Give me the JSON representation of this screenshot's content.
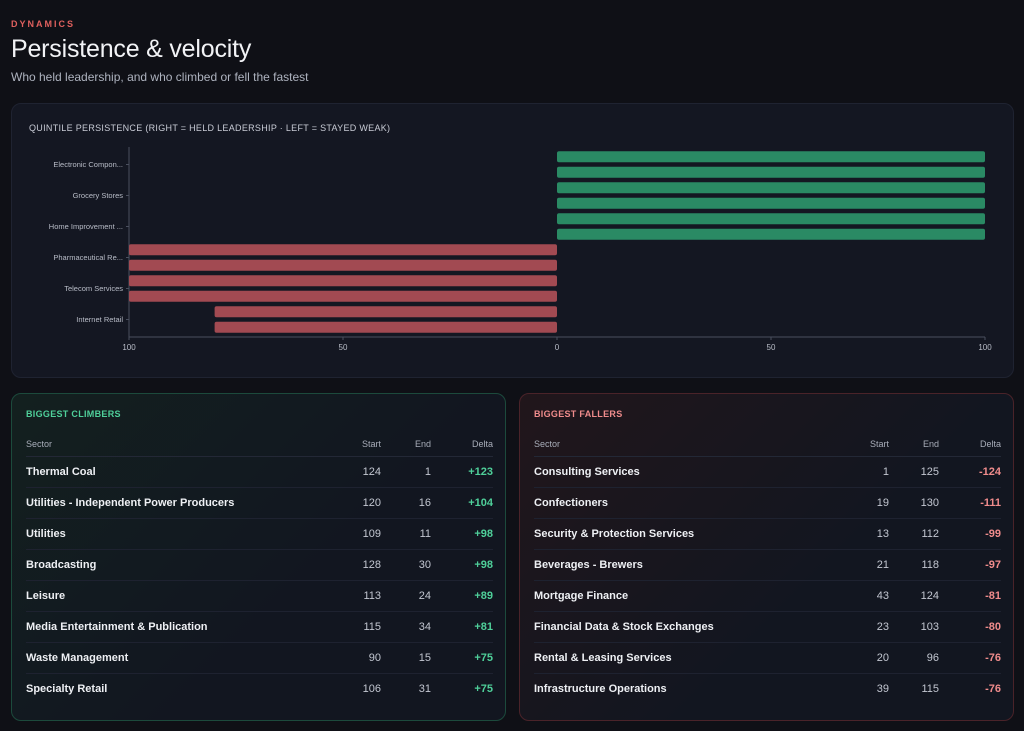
{
  "header": {
    "eyebrow": "DYNAMICS",
    "title": "Persistence & velocity",
    "subtitle": "Who held leadership, and who climbed or fell the fastest"
  },
  "colors": {
    "positive": "#2a8a64",
    "negative": "#a24a52",
    "accent": "#e0605e"
  },
  "chart_data": {
    "type": "bar",
    "orientation": "horizontal",
    "title": "QUINTILE PERSISTENCE (RIGHT = HELD LEADERSHIP · LEFT = STAYED WEAK)",
    "y_tick_labels": [
      "Electronic Compon...",
      "Grocery Stores",
      "Home Improvement ...",
      "Pharmaceutical Re...",
      "Telecom Services",
      "Internet Retail"
    ],
    "x_tick_labels": [
      "100",
      "50",
      "0",
      "50",
      "100"
    ],
    "xlim": [
      -100,
      100
    ],
    "values": [
      100,
      100,
      100,
      100,
      100,
      100,
      -100,
      -100,
      -100,
      -100,
      -80,
      -80
    ]
  },
  "climbers": {
    "title": "BIGGEST CLIMBERS",
    "columns": [
      "Sector",
      "Start",
      "End",
      "Delta"
    ],
    "rows": [
      [
        "Thermal Coal",
        "124",
        "1",
        "+123"
      ],
      [
        "Utilities - Independent Power Producers",
        "120",
        "16",
        "+104"
      ],
      [
        "Utilities",
        "109",
        "11",
        "+98"
      ],
      [
        "Broadcasting",
        "128",
        "30",
        "+98"
      ],
      [
        "Leisure",
        "113",
        "24",
        "+89"
      ],
      [
        "Media Entertainment & Publication",
        "115",
        "34",
        "+81"
      ],
      [
        "Waste Management",
        "90",
        "15",
        "+75"
      ],
      [
        "Specialty Retail",
        "106",
        "31",
        "+75"
      ]
    ]
  },
  "fallers": {
    "title": "BIGGEST FALLERS",
    "columns": [
      "Sector",
      "Start",
      "End",
      "Delta"
    ],
    "rows": [
      [
        "Consulting Services",
        "1",
        "125",
        "-124"
      ],
      [
        "Confectioners",
        "19",
        "130",
        "-111"
      ],
      [
        "Security & Protection Services",
        "13",
        "112",
        "-99"
      ],
      [
        "Beverages - Brewers",
        "21",
        "118",
        "-97"
      ],
      [
        "Mortgage Finance",
        "43",
        "124",
        "-81"
      ],
      [
        "Financial Data & Stock Exchanges",
        "23",
        "103",
        "-80"
      ],
      [
        "Rental & Leasing Services",
        "20",
        "96",
        "-76"
      ],
      [
        "Infrastructure Operations",
        "39",
        "115",
        "-76"
      ]
    ]
  }
}
